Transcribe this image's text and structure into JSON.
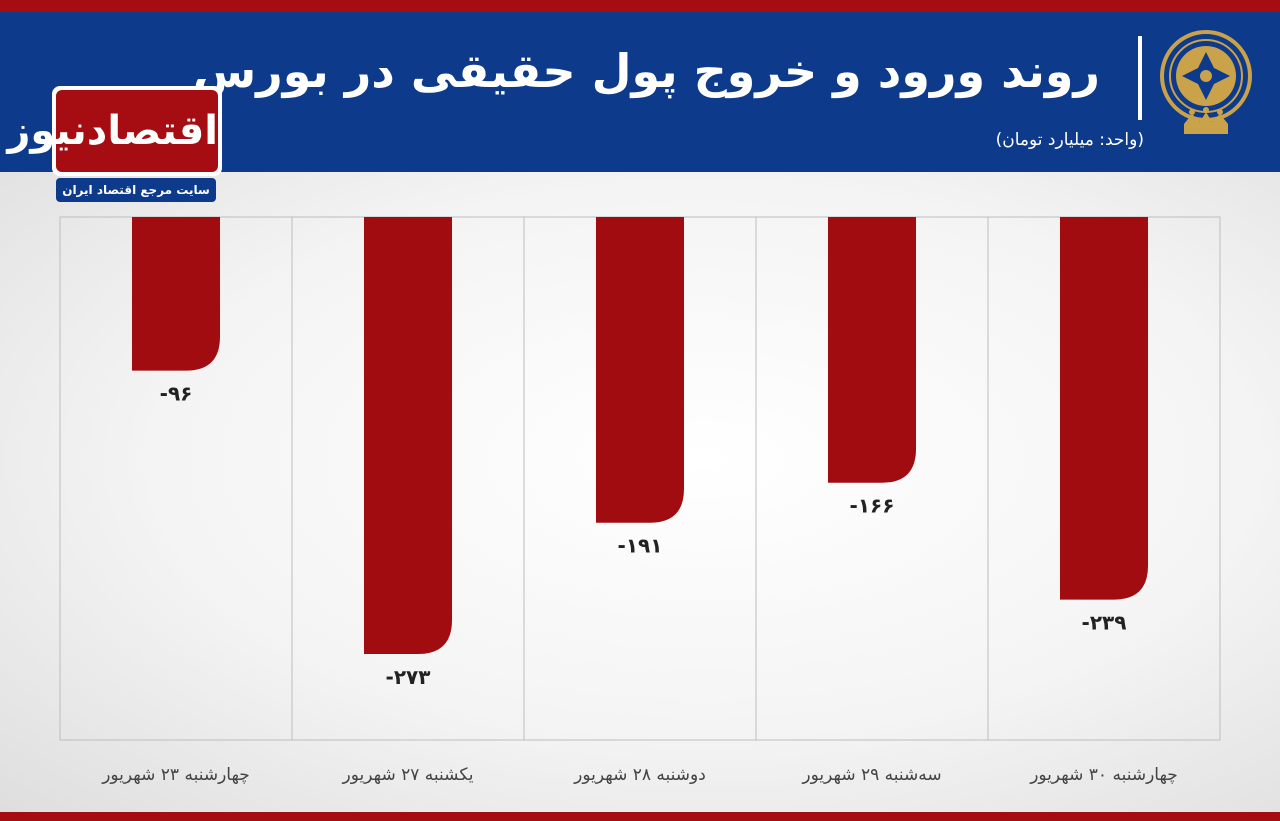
{
  "header": {
    "title": "روند ورود و خروج پول حقیقی در بورس",
    "unit": "(واحد: میلیارد تومان)"
  },
  "brand": {
    "name": "اقتصادنیوز",
    "tagline": "سایت مرجع اقتصاد ایران"
  },
  "colors": {
    "bar": "#a00c10",
    "header_bg": "#0d3a8a",
    "accent": "#a50d12"
  },
  "chart_data": {
    "type": "bar",
    "title": "روند ورود و خروج پول حقیقی در بورس",
    "ylabel": "(واحد: میلیارد تومان)",
    "categories": [
      "چهارشنبه ۳۰ شهریور",
      "سه‌شنبه ۲۹ شهریور",
      "دوشنبه ۲۸ شهریور",
      "یکشنبه ۲۷ شهریور",
      "چهارشنبه ۲۳ شهریور"
    ],
    "values": [
      -239,
      -166,
      -191,
      -273,
      -96
    ],
    "value_labels": [
      "-۲۳۹",
      "-۱۶۶",
      "-۱۹۱",
      "-۲۷۳",
      "-۹۶"
    ],
    "ylim": [
      -320,
      0
    ],
    "grid": false,
    "order": "right-to-left"
  }
}
